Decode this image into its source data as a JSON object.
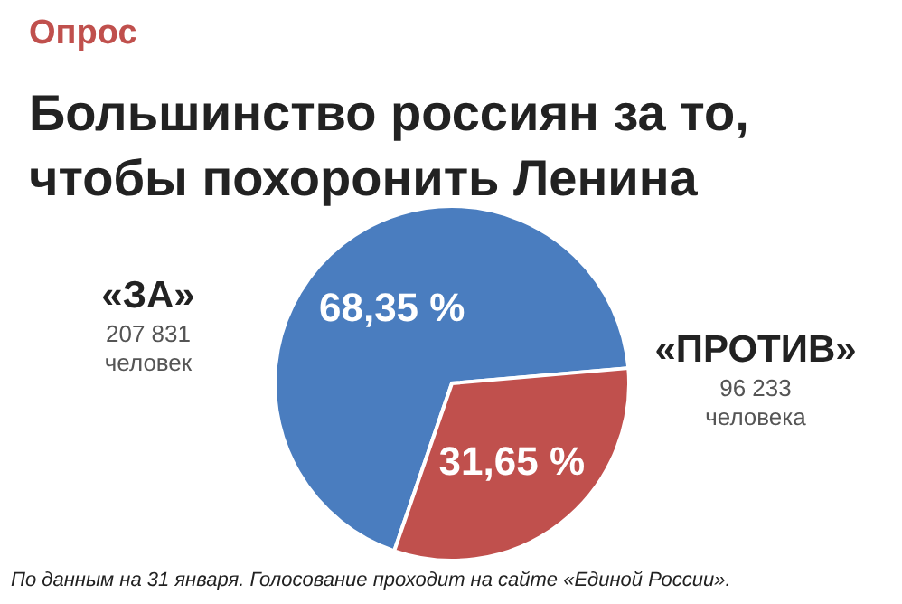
{
  "chart_data": {
    "type": "pie",
    "subtitle": "Опрос",
    "title": "Большинство россиян за то, чтобы похоронить Ленина",
    "categories": [
      "«ЗА»",
      "«ПРОТИВ»"
    ],
    "values": [
      68.35,
      31.65
    ],
    "value_labels": [
      "68,35 %",
      "31,65 %"
    ],
    "colors": [
      "#4a7dbf",
      "#c0504d"
    ],
    "legend": false,
    "annotations": [
      "207 831 человек",
      "96 233 человека",
      "По данным на 31 января. Голосование проходит на сайте «Единой России»."
    ]
  }
}
